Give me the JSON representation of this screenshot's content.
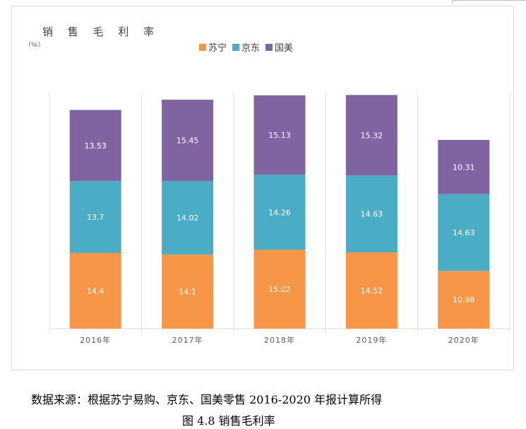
{
  "chart_data": {
    "type": "bar",
    "stacked": true,
    "title": "销 售 毛 利 率",
    "unit": "（%）",
    "categories": [
      "2016年",
      "2017年",
      "2018年",
      "2019年",
      "2020年"
    ],
    "series": [
      {
        "name": "苏宁",
        "color": "#f79646",
        "values": [
          14.4,
          14.1,
          15.02,
          14.52,
          10.98
        ],
        "labels": [
          "14.4",
          "14.1",
          "15.02",
          "14.52",
          "10.98"
        ]
      },
      {
        "name": "京东",
        "color": "#4bacc6",
        "values": [
          13.7,
          14.02,
          14.26,
          14.63,
          14.63
        ],
        "labels": [
          "13.7",
          "14.02",
          "14.26",
          "14.63",
          "14.63"
        ]
      },
      {
        "name": "国美",
        "color": "#8064a2",
        "values": [
          13.53,
          15.45,
          15.13,
          15.32,
          10.31
        ],
        "labels": [
          "13.53",
          "15.45",
          "15.13",
          "15.32",
          "10.31"
        ]
      }
    ],
    "legend_position": "top",
    "grid": false
  },
  "captions": {
    "source": "数据来源：根据苏宁易购、京东、国美零售 2016-2020 年报计算所得",
    "figure": "图 4.8 销售毛利率"
  }
}
